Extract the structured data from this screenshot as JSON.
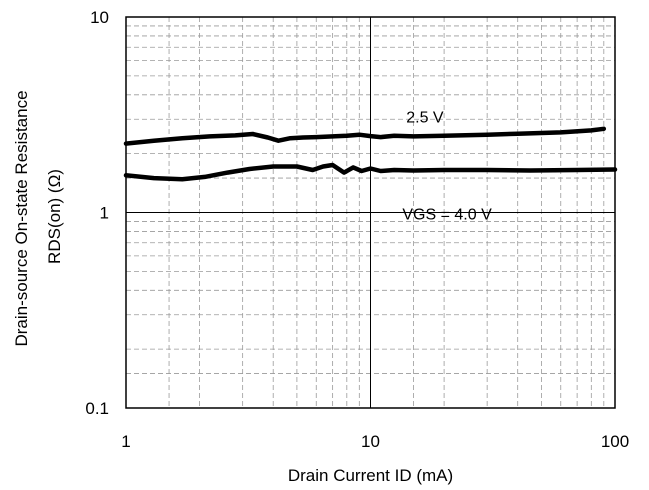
{
  "chart_data": {
    "type": "line",
    "xscale": "log",
    "yscale": "log",
    "xlim": [
      1,
      100
    ],
    "ylim": [
      0.1,
      10
    ],
    "grid": true,
    "xlabel": "Drain Current ID (mA)",
    "ylabel_lines": [
      "Drain-source On-state  Resistance",
      "RDS(on) (Ω)"
    ],
    "x_ticks": [
      {
        "value": 1,
        "label": "1"
      },
      {
        "value": 10,
        "label": "10"
      },
      {
        "value": 100,
        "label": "100"
      }
    ],
    "y_ticks": [
      {
        "value": 0.1,
        "label": "0.1"
      },
      {
        "value": 1,
        "label": "1"
      },
      {
        "value": 10,
        "label": "10"
      }
    ],
    "annotations": [
      {
        "text": "2.5 V",
        "x": 14,
        "y": 3.1
      },
      {
        "text": "VGS = 4.0 V",
        "x": 13.5,
        "y": 0.99
      }
    ],
    "series": [
      {
        "x": [
          1,
          1.3,
          1.7,
          2.2,
          2.8,
          3.3,
          3.8,
          4.2,
          4.7,
          5.3,
          6,
          7,
          8,
          9,
          10,
          11,
          12.5,
          15,
          20,
          30,
          40,
          60,
          80,
          90
        ],
        "y": [
          2.25,
          2.33,
          2.4,
          2.45,
          2.48,
          2.52,
          2.42,
          2.33,
          2.4,
          2.42,
          2.43,
          2.45,
          2.47,
          2.5,
          2.46,
          2.43,
          2.47,
          2.45,
          2.47,
          2.5,
          2.53,
          2.57,
          2.63,
          2.68
        ]
      },
      {
        "x": [
          1,
          1.3,
          1.7,
          2.1,
          2.6,
          3.2,
          4,
          5,
          5.8,
          6.4,
          7,
          7.8,
          8.5,
          9.2,
          10,
          11,
          12.5,
          15,
          20,
          30,
          45,
          70,
          100
        ],
        "y": [
          1.55,
          1.5,
          1.48,
          1.52,
          1.6,
          1.67,
          1.72,
          1.72,
          1.65,
          1.72,
          1.75,
          1.6,
          1.7,
          1.63,
          1.68,
          1.63,
          1.65,
          1.64,
          1.65,
          1.65,
          1.64,
          1.65,
          1.66
        ]
      }
    ]
  }
}
